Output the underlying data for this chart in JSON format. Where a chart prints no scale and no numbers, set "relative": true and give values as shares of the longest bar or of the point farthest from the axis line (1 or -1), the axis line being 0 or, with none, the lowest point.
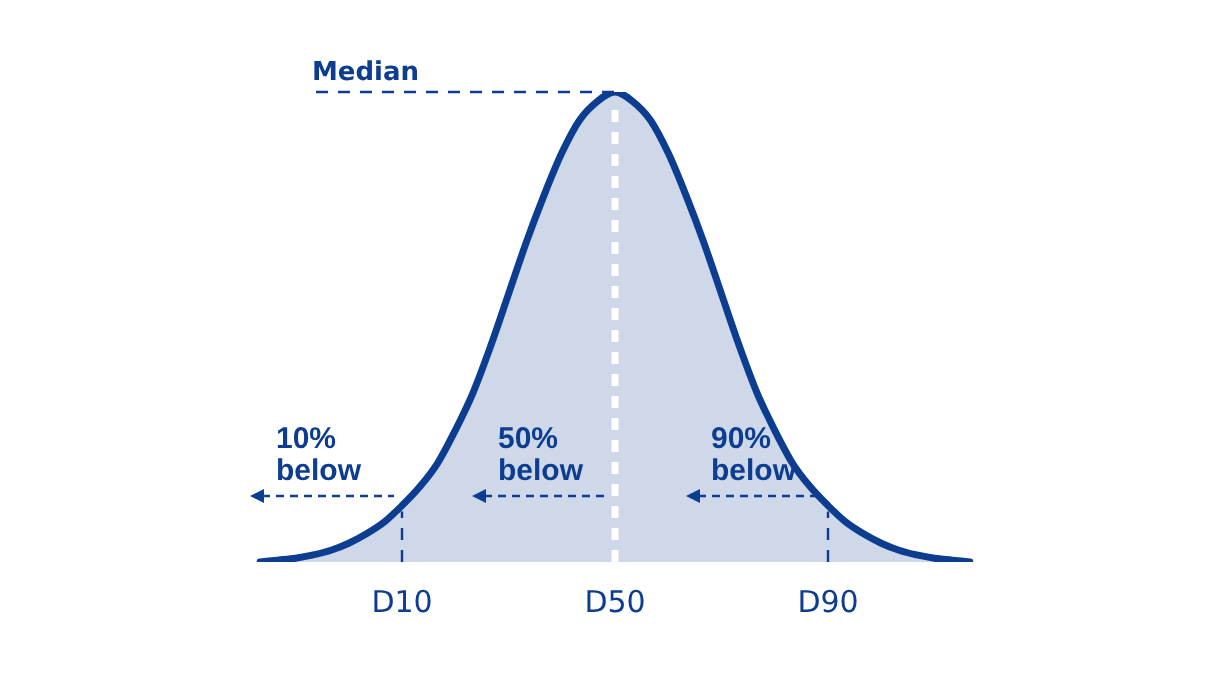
{
  "chart_data": {
    "type": "area",
    "relative": true,
    "color": "#0d3d91",
    "categories": [
      null,
      null,
      null,
      null,
      null,
      null,
      null,
      null,
      "D10",
      null,
      null,
      null,
      null,
      null,
      null,
      null,
      null,
      null,
      null,
      null,
      "D50",
      null,
      null,
      null,
      null,
      null,
      null,
      null,
      null,
      null,
      null,
      null,
      "D90",
      null,
      null,
      null,
      null,
      null,
      null,
      null,
      null
    ],
    "values": [
      0,
      0.004,
      0.008,
      0.015,
      0.025,
      0.04,
      0.06,
      0.085,
      0.12,
      0.16,
      0.21,
      0.28,
      0.36,
      0.46,
      0.57,
      0.68,
      0.78,
      0.87,
      0.94,
      0.98,
      1,
      0.98,
      0.94,
      0.87,
      0.78,
      0.68,
      0.57,
      0.46,
      0.36,
      0.28,
      0.21,
      0.16,
      0.12,
      0.085,
      0.06,
      0.04,
      0.025,
      0.015,
      0.008,
      0.004,
      0
    ],
    "ref_lines": [
      {
        "axis": "y",
        "value": 1,
        "label": "Median",
        "color": "#0d3d91",
        "line_style": "dashed"
      },
      {
        "axis": "x",
        "value": "D10",
        "color": "#0d3d91",
        "line_style": "dashed"
      },
      {
        "axis": "x",
        "value": "D50",
        "color": "#ffffff",
        "line_style": "dashed"
      },
      {
        "axis": "x",
        "value": "D90",
        "color": "#0d3d91",
        "line_style": "dashed"
      }
    ],
    "annotations": [
      {
        "text": "10%\nbelow",
        "x": "D10",
        "y": 0.14
      },
      {
        "text": "50%\nbelow",
        "x": "D50",
        "y": 0.14
      },
      {
        "text": "90%\nbelow",
        "x": "D90",
        "y": 0.14
      }
    ],
    "grid": false,
    "legend": false,
    "tick_labels": "x"
  }
}
